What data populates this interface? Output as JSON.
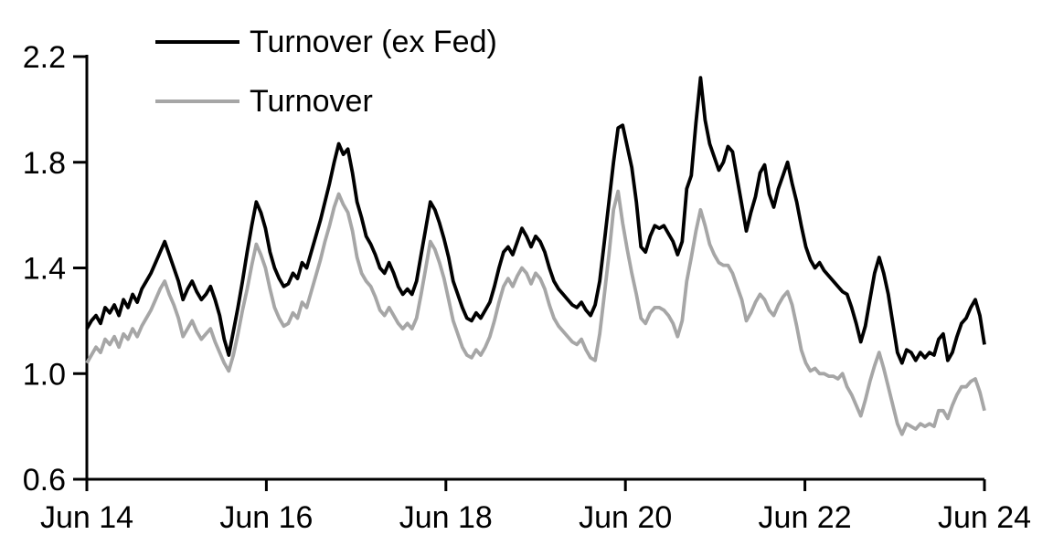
{
  "figure": {
    "background_color": "#ffffff",
    "accent_black": "#000000",
    "accent_gray": "#a6a6a6"
  },
  "legend": {
    "position": "top-left",
    "items": [
      {
        "label": "Turnover (ex Fed)",
        "color": "#000000"
      },
      {
        "label": "Turnover",
        "color": "#a6a6a6"
      }
    ]
  },
  "chart_data": {
    "type": "line",
    "title": "",
    "xlabel": "",
    "ylabel": "",
    "grid": false,
    "legend_position": "top-left",
    "x_axis": {
      "tick_labels": [
        "Jun 14",
        "Jun 16",
        "Jun 18",
        "Jun 20",
        "Jun 22",
        "Jun 24"
      ],
      "range": [
        "Jun 2014",
        "Jun 2024"
      ]
    },
    "y_axis": {
      "ticks": [
        0.6,
        1.0,
        1.4,
        1.8,
        2.2
      ],
      "tick_labels": [
        "0.6",
        "1.0",
        "1.4",
        "1.8",
        "2.2"
      ],
      "ylim": [
        0.6,
        2.2
      ]
    },
    "sampling": "uniform between Jun 2014 and Jun 2024",
    "series": [
      {
        "name": "Turnover (ex Fed)",
        "color": "#000000",
        "values": [
          1.17,
          1.2,
          1.22,
          1.19,
          1.25,
          1.23,
          1.26,
          1.22,
          1.28,
          1.25,
          1.3,
          1.27,
          1.32,
          1.35,
          1.38,
          1.42,
          1.46,
          1.5,
          1.45,
          1.4,
          1.35,
          1.28,
          1.32,
          1.35,
          1.31,
          1.28,
          1.3,
          1.33,
          1.28,
          1.22,
          1.13,
          1.07,
          1.16,
          1.25,
          1.35,
          1.46,
          1.56,
          1.65,
          1.61,
          1.55,
          1.46,
          1.4,
          1.36,
          1.33,
          1.34,
          1.38,
          1.36,
          1.42,
          1.4,
          1.46,
          1.52,
          1.58,
          1.65,
          1.72,
          1.8,
          1.87,
          1.83,
          1.85,
          1.76,
          1.65,
          1.59,
          1.52,
          1.49,
          1.45,
          1.4,
          1.38,
          1.42,
          1.38,
          1.33,
          1.3,
          1.32,
          1.3,
          1.35,
          1.45,
          1.55,
          1.65,
          1.62,
          1.57,
          1.51,
          1.44,
          1.35,
          1.3,
          1.25,
          1.21,
          1.2,
          1.23,
          1.21,
          1.24,
          1.27,
          1.33,
          1.4,
          1.46,
          1.48,
          1.45,
          1.5,
          1.55,
          1.52,
          1.48,
          1.52,
          1.5,
          1.46,
          1.4,
          1.35,
          1.32,
          1.3,
          1.28,
          1.26,
          1.25,
          1.27,
          1.24,
          1.22,
          1.26,
          1.35,
          1.5,
          1.65,
          1.8,
          1.93,
          1.94,
          1.86,
          1.78,
          1.65,
          1.48,
          1.46,
          1.52,
          1.56,
          1.55,
          1.56,
          1.53,
          1.5,
          1.45,
          1.5,
          1.7,
          1.75,
          1.95,
          2.12,
          1.96,
          1.87,
          1.82,
          1.77,
          1.8,
          1.86,
          1.84,
          1.74,
          1.64,
          1.54,
          1.61,
          1.67,
          1.76,
          1.79,
          1.68,
          1.63,
          1.7,
          1.75,
          1.8,
          1.72,
          1.65,
          1.56,
          1.48,
          1.43,
          1.4,
          1.42,
          1.39,
          1.37,
          1.35,
          1.33,
          1.31,
          1.3,
          1.25,
          1.19,
          1.12,
          1.18,
          1.28,
          1.38,
          1.44,
          1.38,
          1.3,
          1.19,
          1.08,
          1.04,
          1.09,
          1.08,
          1.05,
          1.08,
          1.06,
          1.08,
          1.07,
          1.13,
          1.15,
          1.05,
          1.08,
          1.14,
          1.19,
          1.21,
          1.25,
          1.28,
          1.22,
          1.11
        ]
      },
      {
        "name": "Turnover",
        "color": "#a6a6a6",
        "values": [
          1.04,
          1.07,
          1.1,
          1.08,
          1.13,
          1.11,
          1.14,
          1.1,
          1.15,
          1.13,
          1.17,
          1.14,
          1.18,
          1.21,
          1.24,
          1.28,
          1.32,
          1.35,
          1.3,
          1.26,
          1.21,
          1.14,
          1.17,
          1.2,
          1.16,
          1.13,
          1.15,
          1.17,
          1.12,
          1.08,
          1.04,
          1.01,
          1.07,
          1.15,
          1.24,
          1.32,
          1.41,
          1.49,
          1.45,
          1.4,
          1.32,
          1.25,
          1.21,
          1.18,
          1.19,
          1.23,
          1.21,
          1.27,
          1.25,
          1.31,
          1.37,
          1.43,
          1.5,
          1.56,
          1.63,
          1.68,
          1.64,
          1.61,
          1.54,
          1.44,
          1.38,
          1.35,
          1.33,
          1.29,
          1.24,
          1.22,
          1.25,
          1.22,
          1.19,
          1.17,
          1.19,
          1.17,
          1.21,
          1.3,
          1.4,
          1.5,
          1.47,
          1.42,
          1.36,
          1.28,
          1.2,
          1.15,
          1.1,
          1.07,
          1.06,
          1.09,
          1.07,
          1.1,
          1.14,
          1.2,
          1.27,
          1.33,
          1.36,
          1.33,
          1.37,
          1.4,
          1.38,
          1.34,
          1.38,
          1.36,
          1.32,
          1.26,
          1.21,
          1.18,
          1.16,
          1.14,
          1.12,
          1.11,
          1.13,
          1.09,
          1.06,
          1.05,
          1.15,
          1.3,
          1.45,
          1.62,
          1.69,
          1.57,
          1.47,
          1.38,
          1.3,
          1.21,
          1.19,
          1.23,
          1.25,
          1.25,
          1.24,
          1.22,
          1.19,
          1.14,
          1.2,
          1.35,
          1.44,
          1.54,
          1.62,
          1.56,
          1.49,
          1.45,
          1.42,
          1.41,
          1.41,
          1.38,
          1.33,
          1.28,
          1.2,
          1.23,
          1.27,
          1.3,
          1.28,
          1.24,
          1.22,
          1.26,
          1.29,
          1.31,
          1.26,
          1.18,
          1.09,
          1.04,
          1.01,
          1.02,
          1.0,
          1.0,
          0.99,
          0.99,
          0.98,
          1.0,
          0.95,
          0.92,
          0.88,
          0.84,
          0.9,
          0.97,
          1.03,
          1.08,
          1.02,
          0.95,
          0.88,
          0.81,
          0.77,
          0.81,
          0.8,
          0.79,
          0.81,
          0.8,
          0.81,
          0.8,
          0.86,
          0.86,
          0.83,
          0.88,
          0.92,
          0.95,
          0.95,
          0.97,
          0.98,
          0.93,
          0.86
        ]
      }
    ]
  }
}
